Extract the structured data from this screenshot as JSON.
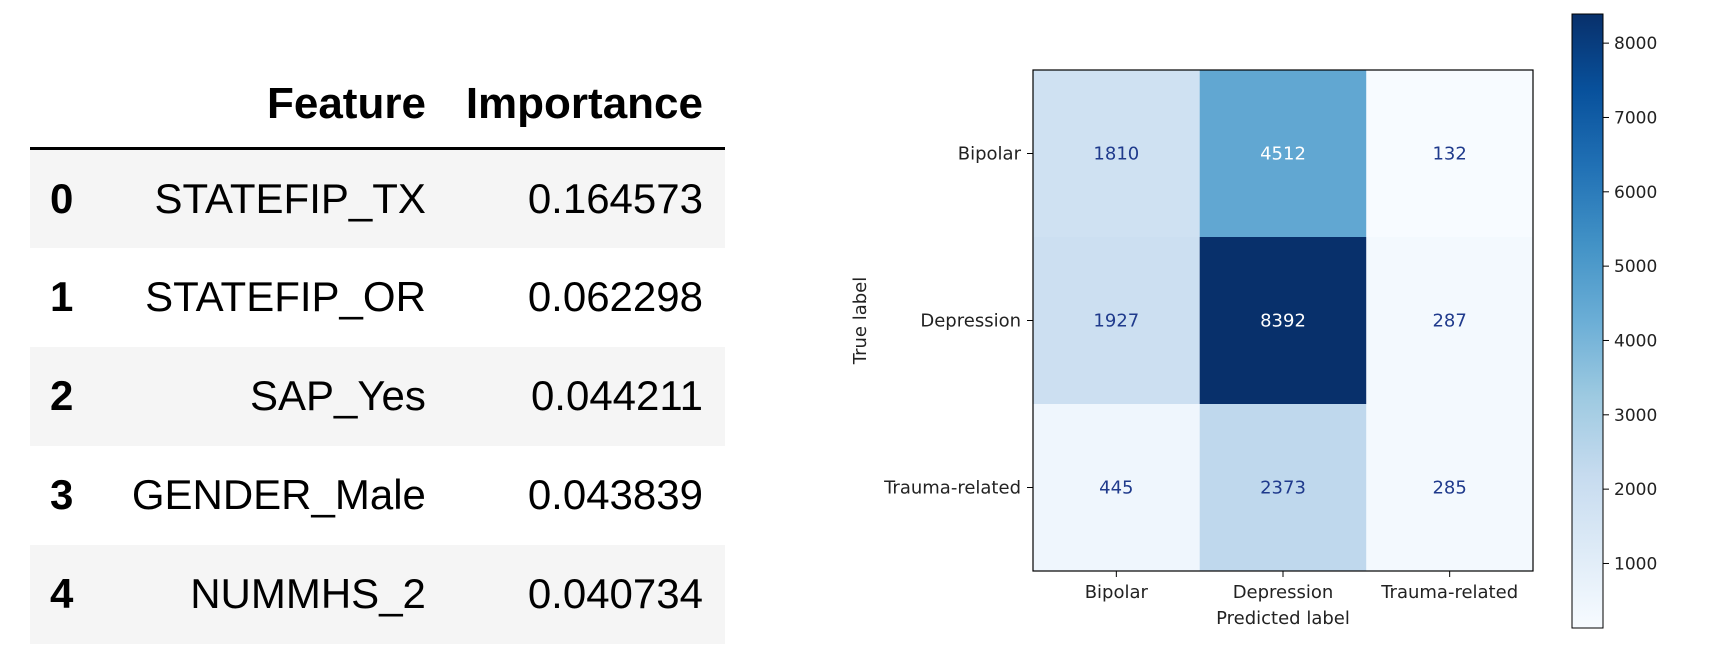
{
  "table": {
    "headers": [
      "",
      "Feature",
      "Importance"
    ],
    "rows": [
      {
        "index": "0",
        "feature": "STATEFIP_TX",
        "importance": "0.164573"
      },
      {
        "index": "1",
        "feature": "STATEFIP_OR",
        "importance": "0.062298"
      },
      {
        "index": "2",
        "feature": "SAP_Yes",
        "importance": "0.044211"
      },
      {
        "index": "3",
        "feature": "GENDER_Male",
        "importance": "0.043839"
      },
      {
        "index": "4",
        "feature": "NUMMHS_2",
        "importance": "0.040734"
      }
    ]
  },
  "chart_data": {
    "type": "heatmap",
    "title": "",
    "xlabel": "Predicted label",
    "ylabel": "True label",
    "x_categories": [
      "Bipolar",
      "Depression",
      "Trauma-related"
    ],
    "y_categories": [
      "Bipolar",
      "Depression",
      "Trauma-related"
    ],
    "values": [
      [
        1810,
        4512,
        132
      ],
      [
        1927,
        8392,
        287
      ],
      [
        445,
        2373,
        285
      ]
    ],
    "colormap": "Blues",
    "colorbar": {
      "min": 132,
      "max": 8392,
      "ticks": [
        1000,
        2000,
        3000,
        4000,
        5000,
        6000,
        7000,
        8000
      ]
    },
    "text_color_light": "#ffffff",
    "text_color_dark": "#1f3a8c",
    "grid": false,
    "legend": "colorbar-right"
  }
}
